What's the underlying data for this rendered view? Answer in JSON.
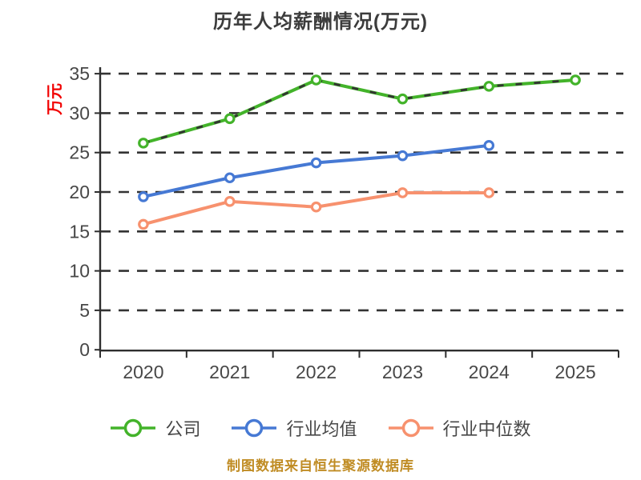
{
  "title": "历年人均薪酬情况(万元)",
  "y_axis_label": "万元",
  "caption": "制图数据来自恒生聚源数据库",
  "colors": {
    "company": "#43b32a",
    "industry_avg": "#4679d4",
    "industry_median": "#f7916e",
    "grid": "#333333",
    "axis": "#2e2e2e",
    "tick_label": "#474747",
    "title": "#3c3c3c",
    "y_label": "#f10000",
    "caption": "#c08c24",
    "marker_fill": "#ffffff"
  },
  "chart_data": {
    "type": "line",
    "title": "历年人均薪酬情况(万元)",
    "xlabel": "",
    "ylabel": "万元",
    "categories": [
      "2020",
      "2021",
      "2022",
      "2023",
      "2024",
      "2025"
    ],
    "series": [
      {
        "name": "公司",
        "color": "#43b32a",
        "dash_overlay": true,
        "values": [
          26.2,
          29.3,
          34.2,
          31.8,
          33.4,
          34.2
        ]
      },
      {
        "name": "行业均值",
        "color": "#4679d4",
        "dash_overlay": false,
        "values": [
          19.4,
          21.8,
          23.7,
          24.6,
          25.9,
          null
        ]
      },
      {
        "name": "行业中位数",
        "color": "#f7916e",
        "dash_overlay": false,
        "values": [
          15.9,
          18.8,
          18.1,
          19.9,
          19.9,
          null
        ]
      }
    ],
    "ylim": [
      0,
      35
    ],
    "ytick_step": 5,
    "ytick_labels": [
      "0",
      "5",
      "10",
      "15",
      "20",
      "25",
      "30",
      "35"
    ],
    "grid": "horizontal-dashed",
    "legend_position": "bottom",
    "marker": "circle-white-fill"
  }
}
